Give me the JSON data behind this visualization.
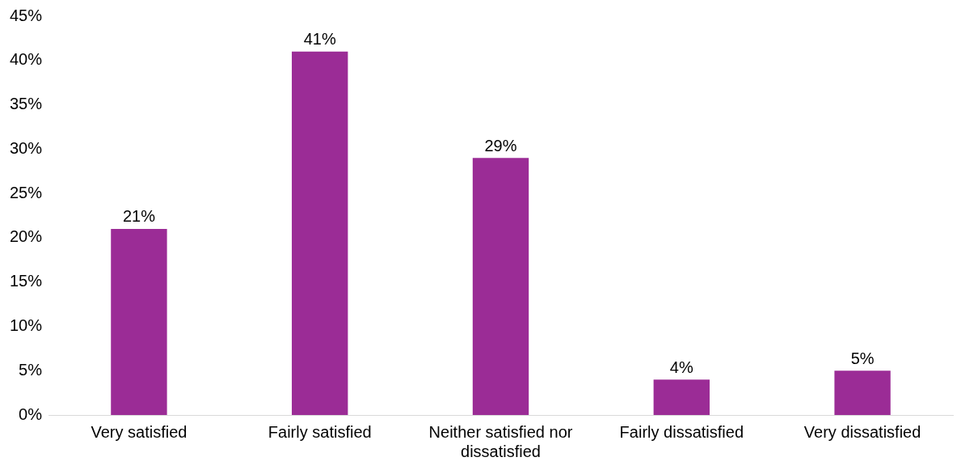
{
  "chart_data": {
    "type": "bar",
    "categories": [
      "Very satisfied",
      "Fairly satisfied",
      "Neither satisfied nor dissatisfied",
      "Fairly dissatisfied",
      "Very dissatisfied"
    ],
    "values": [
      21,
      41,
      29,
      4,
      5
    ],
    "color": "#9b2c96",
    "value_labels": [
      "21%",
      "41%",
      "29%",
      "4%",
      "5%"
    ],
    "ylim": [
      0,
      45
    ],
    "yticks": [
      {
        "value": 0,
        "label": "0%"
      },
      {
        "value": 5,
        "label": "5%"
      },
      {
        "value": 10,
        "label": "10%"
      },
      {
        "value": 15,
        "label": "15%"
      },
      {
        "value": 20,
        "label": "20%"
      },
      {
        "value": 25,
        "label": "25%"
      },
      {
        "value": 30,
        "label": "30%"
      },
      {
        "value": 35,
        "label": "35%"
      },
      {
        "value": 40,
        "label": "40%"
      },
      {
        "value": 45,
        "label": "45%"
      }
    ],
    "grid": false,
    "legend": false
  }
}
